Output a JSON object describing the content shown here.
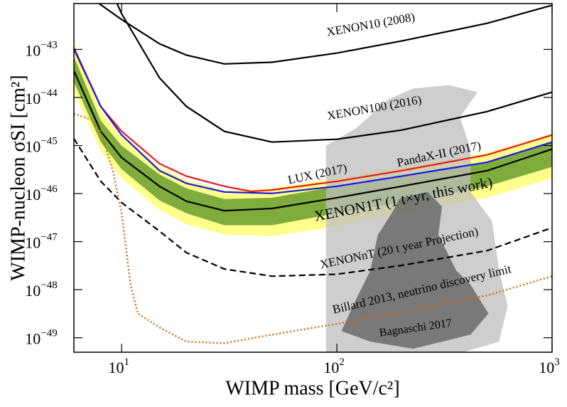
{
  "chart_data": {
    "type": "line",
    "xlabel": "WIMP mass [GeV/c²]",
    "ylabel": "WIMP-nucleon σSI [cm²]",
    "xscale": "log",
    "yscale": "log",
    "xlim": [
      6,
      1000
    ],
    "ylim": [
      5e-50,
      9e-43
    ],
    "xticks": [
      {
        "value": 10,
        "label": "101"
      },
      {
        "value": 100,
        "label": "102"
      },
      {
        "value": 1000,
        "label": "103"
      }
    ],
    "yticks": [
      {
        "value": 1e-49,
        "label": "10−49"
      },
      {
        "value": 1e-48,
        "label": "10−48"
      },
      {
        "value": 1e-47,
        "label": "10−47"
      },
      {
        "value": 1e-46,
        "label": "10−46"
      },
      {
        "value": 1e-45,
        "label": "10−45"
      },
      {
        "value": 1e-44,
        "label": "10−44"
      },
      {
        "value": 1e-43,
        "label": "10−43"
      }
    ],
    "bands": [
      {
        "color": "#ffff8c",
        "x": [
          6,
          8,
          10,
          15,
          20,
          30,
          50,
          100,
          200,
          500,
          1000
        ],
        "lower": [
          1.29e-44,
          7.8e-46,
          2.1e-46,
          4.6e-47,
          2.3e-47,
          1.39e-47,
          1.3e-47,
          2.1e-47,
          3.9e-47,
          8.2e-47,
          2.1e-46
        ],
        "upper": [
          1.41e-43,
          5.5e-45,
          1.55e-45,
          3.6e-46,
          1.93e-46,
          1.15e-46,
          1.28e-46,
          2.1e-46,
          3.6e-46,
          7.1e-46,
          1.77e-45
        ]
      },
      {
        "color": "#7fac3c",
        "x": [
          6,
          8,
          10,
          15,
          20,
          30,
          50,
          100,
          200,
          500,
          1000
        ],
        "lower": [
          2.1e-44,
          1.18e-45,
          3.2e-46,
          7.2e-47,
          3.9e-47,
          2.2e-47,
          2.2e-47,
          3.9e-47,
          6.5e-47,
          1.42e-46,
          3.6e-46
        ],
        "upper": [
          7.1e-44,
          3.3e-45,
          9.9e-46,
          2.5e-46,
          1.28e-46,
          7.7e-47,
          8.2e-47,
          1.42e-46,
          2.3e-46,
          4.5e-46,
          1.18e-45
        ]
      }
    ],
    "regions": [
      {
        "name": "Bagnaschi 2017",
        "polygons": [
          {
            "color": "#bdbdbd",
            "x": [
              89,
              89,
              123,
              173,
              226,
              332,
              451,
              373,
              418,
              418,
              526,
              567,
              622,
              567,
              387
            ],
            "y": [
              5e-50,
              9.9e-46,
              2.3e-45,
              9.1e-45,
              1.53e-44,
              1.81e-44,
              1.29e-44,
              3.9e-45,
              8.4e-46,
              1.08e-46,
              2.7e-47,
              2.5e-48,
              4.6e-49,
              8.3e-50,
              5e-50
            ]
          },
          {
            "color": "#6a6a6a",
            "x": [
              105,
              123,
              143,
              155,
              180,
              195,
              264,
              308,
              296,
              359,
              418,
              506,
              418,
              226,
              143
            ],
            "y": [
              1.38e-49,
              6.4e-49,
              2.5e-48,
              1.39e-47,
              3.9e-47,
              7.7e-47,
              1.08e-46,
              5.4e-47,
              1.39e-47,
              2.5e-48,
              1.27e-48,
              3.2e-49,
              1.16e-49,
              5.9e-50,
              8.3e-50
            ]
          }
        ]
      }
    ],
    "series": [
      {
        "name": "XENON10 (2008)",
        "color": "#000000",
        "style": "solid",
        "x": [
          7.8,
          10,
          15,
          20,
          30,
          50,
          100,
          200,
          500,
          1000
        ],
        "values": [
          9.2e-43,
          4.2e-43,
          1.31e-43,
          7.6e-44,
          5e-44,
          5.4e-44,
          8.4e-44,
          1.5e-43,
          3.5e-43,
          8.3e-43
        ]
      },
      {
        "name": "XENON100 (2016)",
        "color": "#000000",
        "style": "solid",
        "x": [
          9.5,
          10,
          15,
          20,
          30,
          50,
          100,
          200,
          500,
          1000
        ],
        "values": [
          9.2e-43,
          5.5e-43,
          2.55e-44,
          6.5e-45,
          1.97e-45,
          1.18e-45,
          1.35e-45,
          2.1e-45,
          5.1e-45,
          1.29e-44
        ]
      },
      {
        "name": "LUX (2017)",
        "color": "#e8191b",
        "style": "solid",
        "x": [
          6,
          8,
          10,
          15,
          20,
          30,
          40,
          50,
          100,
          200,
          500,
          1000
        ],
        "values": [
          1e-43,
          6.5e-45,
          1.97e-45,
          4.2e-46,
          2.3e-46,
          1.42e-46,
          1.11e-46,
          1.19e-46,
          1.8e-46,
          3e-46,
          6.4e-46,
          1.66e-45
        ]
      },
      {
        "name": "PandaX-II (2017)",
        "color": "#1818e6",
        "style": "solid",
        "x": [
          6,
          8,
          10,
          15,
          20,
          30,
          50,
          100,
          200,
          500,
          1000
        ],
        "values": [
          1.07e-43,
          6.5e-45,
          1.66e-45,
          3e-46,
          1.63e-46,
          1.08e-46,
          1.01e-46,
          1.42e-46,
          2.3e-46,
          4.5e-46,
          1.18e-45
        ]
      },
      {
        "name": "XENON1T (1 t×yr, this work)",
        "color": "#000000",
        "style": "solid",
        "x": [
          6,
          8,
          10,
          15,
          20,
          30,
          50,
          100,
          200,
          500,
          1000
        ],
        "values": [
          3.6e-44,
          1.97e-45,
          5.6e-46,
          1.42e-46,
          6.9e-47,
          4.4e-47,
          4.9e-47,
          8.2e-47,
          1.42e-46,
          3e-46,
          8.4e-46
        ]
      },
      {
        "name": "XENONnT (20 t year Projection)",
        "color": "#000000",
        "style": "dashed",
        "x": [
          6,
          8,
          10,
          15,
          20,
          30,
          50,
          100,
          200,
          500,
          1000
        ],
        "values": [
          1.4e-45,
          1.8e-46,
          6.5e-47,
          1.65e-47,
          5.9e-48,
          2.7e-48,
          1.91e-48,
          2.1e-48,
          3.2e-48,
          6.5e-48,
          1.95e-47
        ]
      },
      {
        "name": "Billard 2013, neutrino discovery limit",
        "color": "#cc6a10",
        "style": "dotted",
        "x": [
          6,
          7.2,
          8,
          9.1,
          10,
          11.0,
          11.9,
          15,
          20,
          30,
          50,
          100,
          200,
          500,
          1000
        ],
        "values": [
          4.6e-45,
          3.5e-45,
          1.97e-45,
          3e-46,
          3.9e-47,
          1.27e-48,
          3.2e-49,
          1.64e-49,
          8.3e-50,
          7.7e-50,
          1.16e-49,
          1.94e-49,
          3.5e-49,
          7.6e-49,
          1.91e-48
        ]
      }
    ]
  }
}
